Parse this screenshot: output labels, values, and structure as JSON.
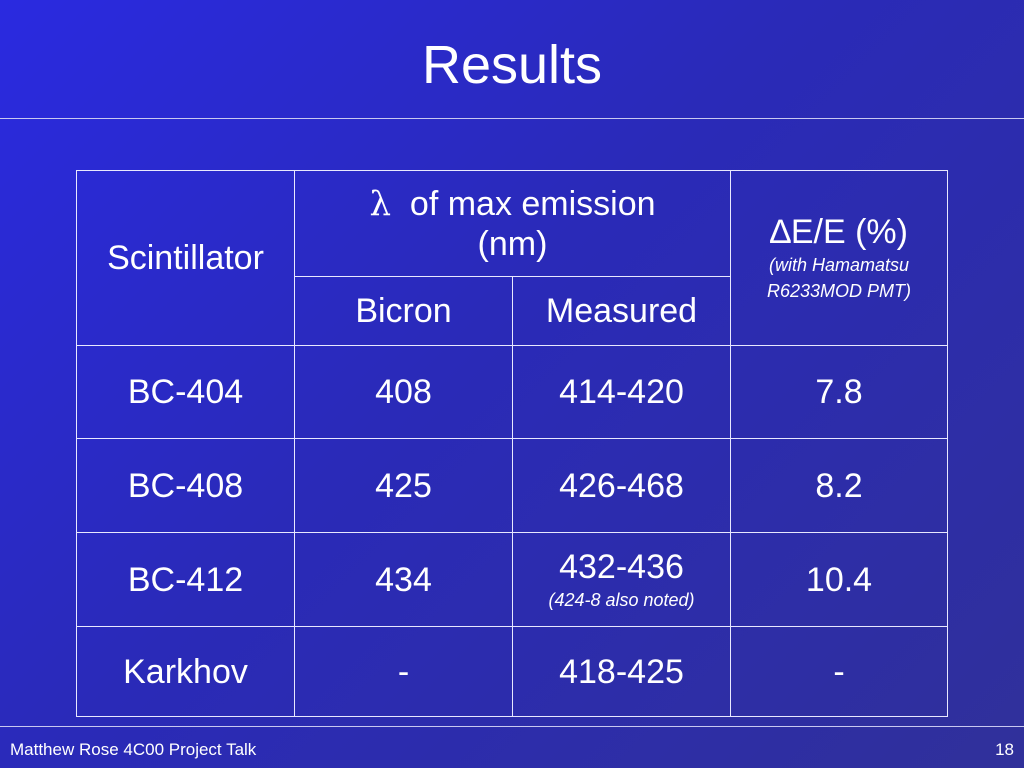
{
  "title": "Results",
  "table": {
    "header": {
      "scintillator": "Scintillator",
      "lambda": "λ",
      "emission_line1": "of max emission",
      "emission_line2": "(nm)",
      "resolution": "∆E/E (%)",
      "resolution_note_line1": "(with Hamamatsu",
      "resolution_note_line2": "R6233MOD PMT)",
      "bicron": "Bicron",
      "measured": "Measured"
    },
    "rows": [
      [
        "BC-404",
        "408",
        "414-420",
        "7.8"
      ],
      [
        "BC-408",
        "425",
        "426-468",
        "8.2"
      ],
      [
        "BC-412",
        "434",
        "432-436",
        "10.4"
      ],
      [
        "Karkhov",
        "-",
        "418-425",
        "-"
      ]
    ],
    "cell_notes": {
      "row_2_col_2": "(424-8 also noted)"
    }
  },
  "footer": {
    "text": "Matthew Rose 4C00 Project Talk",
    "page": "18"
  }
}
